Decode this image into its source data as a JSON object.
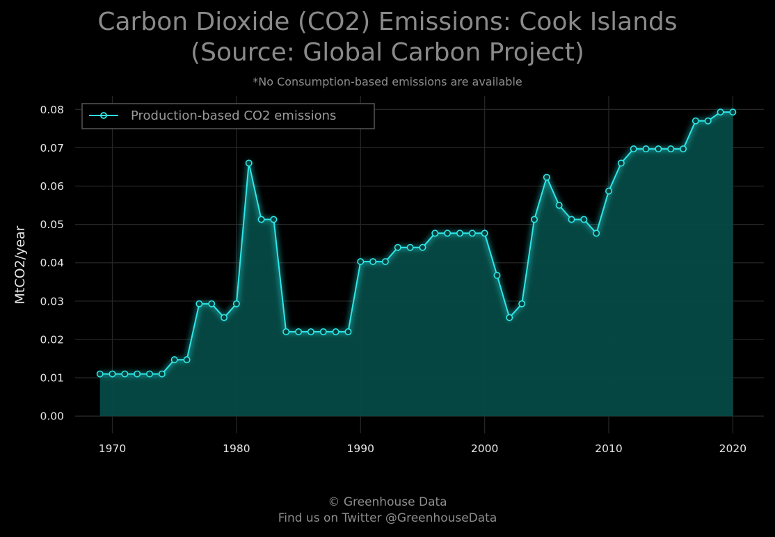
{
  "header": {
    "title_line1": "Carbon Dioxide (CO2) Emissions: Cook Islands",
    "title_line2": "(Source: Global Carbon Project)",
    "subtitle": "*No Consumption-based emissions are available"
  },
  "footer": {
    "line1": "© Greenhouse Data",
    "line2": "Find us on Twitter @GreenhouseData"
  },
  "colors": {
    "series": "#2ee6e6",
    "fill": "#064a46",
    "grid": "#262626",
    "legend_border": "#555555"
  },
  "chart_data": {
    "type": "area",
    "title": "Carbon Dioxide (CO2) Emissions: Cook Islands (Source: Global Carbon Project)",
    "subtitle": "*No Consumption-based emissions are available",
    "xlabel": "",
    "ylabel": "MtCO2/year",
    "xlim": [
      1967,
      2022.5
    ],
    "ylim": [
      -0.0045,
      0.0835
    ],
    "xticks": [
      1970,
      1980,
      1990,
      2000,
      2010,
      2020
    ],
    "yticks": [
      "0.00",
      "0.01",
      "0.02",
      "0.03",
      "0.04",
      "0.05",
      "0.06",
      "0.07",
      "0.08"
    ],
    "grid": true,
    "legend_position": "top-left",
    "series": [
      {
        "name": "Production-based CO2 emissions",
        "x": [
          1969,
          1970,
          1971,
          1972,
          1973,
          1974,
          1975,
          1976,
          1977,
          1978,
          1979,
          1980,
          1981,
          1982,
          1983,
          1984,
          1985,
          1986,
          1987,
          1988,
          1989,
          1990,
          1991,
          1992,
          1993,
          1994,
          1995,
          1996,
          1997,
          1998,
          1999,
          2000,
          2001,
          2002,
          2003,
          2004,
          2005,
          2006,
          2007,
          2008,
          2009,
          2010,
          2011,
          2012,
          2013,
          2014,
          2015,
          2016,
          2017,
          2018,
          2019,
          2020
        ],
        "values": [
          0.011,
          0.011,
          0.011,
          0.011,
          0.011,
          0.011,
          0.0147,
          0.0147,
          0.0293,
          0.0293,
          0.0257,
          0.0293,
          0.066,
          0.0513,
          0.0513,
          0.022,
          0.022,
          0.022,
          0.022,
          0.022,
          0.022,
          0.0403,
          0.0403,
          0.0403,
          0.044,
          0.044,
          0.044,
          0.0477,
          0.0477,
          0.0477,
          0.0477,
          0.0477,
          0.0367,
          0.0257,
          0.0293,
          0.0513,
          0.0623,
          0.055,
          0.0513,
          0.0513,
          0.0477,
          0.0587,
          0.066,
          0.0697,
          0.0697,
          0.0697,
          0.0697,
          0.0697,
          0.077,
          0.077,
          0.0793,
          0.0793
        ]
      }
    ]
  }
}
